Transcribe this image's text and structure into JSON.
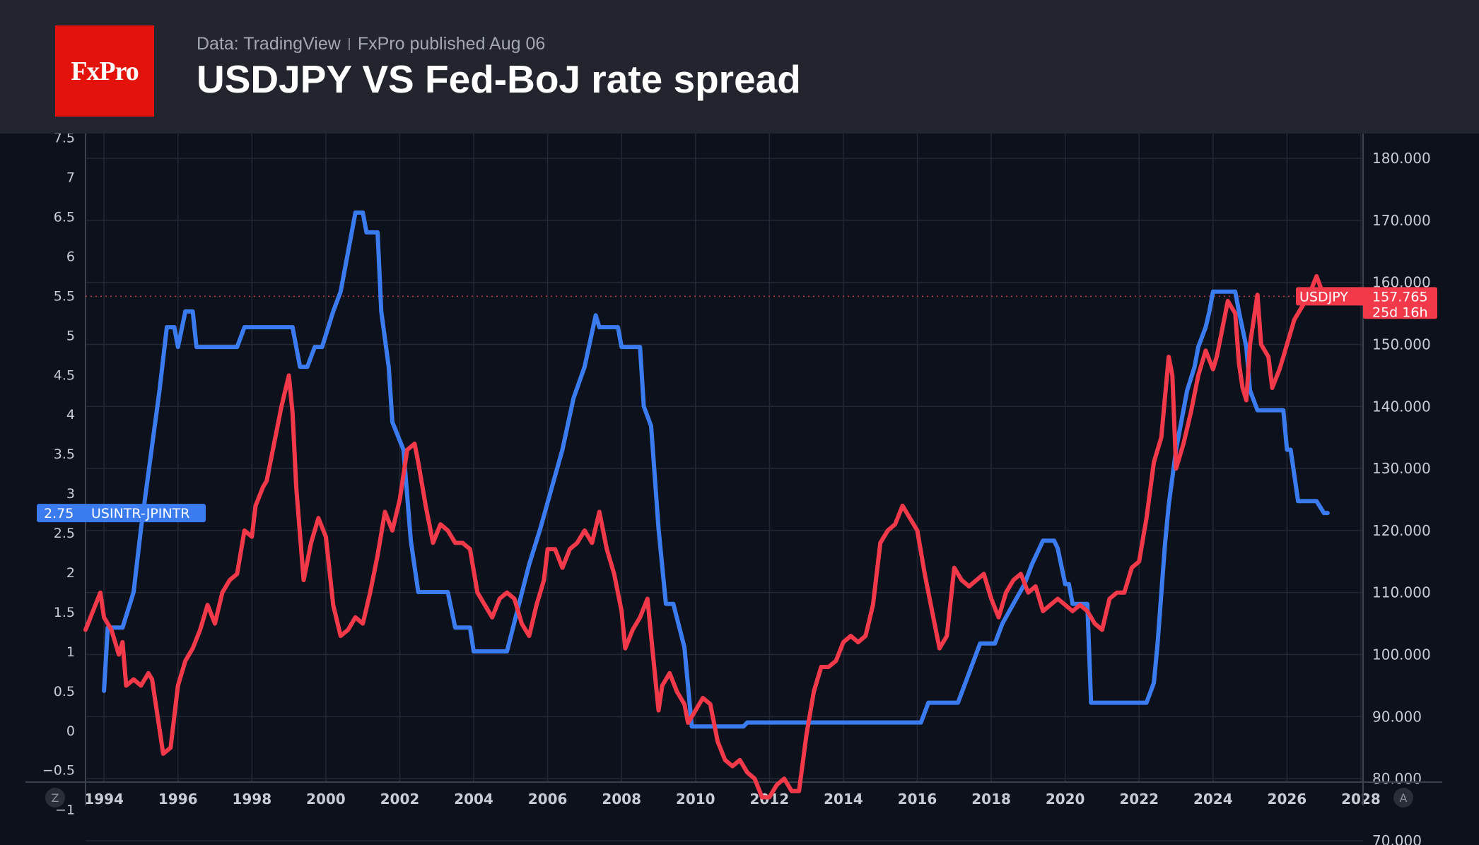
{
  "header": {
    "logo_text": "FxPro",
    "source_text": "Data: TradingView",
    "published_text": "FxPro published Aug 06",
    "title": "USDJPY VS Fed-BoJ rate spread"
  },
  "colors": {
    "background": "#0d111c",
    "header_bg": "#22242e",
    "logo_bg": "#e3120b",
    "spread_line": "#3a7bef",
    "usdjpy_line": "#f2394a",
    "grid": "#232734",
    "axis_text": "#c9ccd4"
  },
  "scale_buttons": {
    "left": "Z",
    "right": "A"
  },
  "chart_data": {
    "type": "line",
    "xlim": [
      1993.5,
      2030.2
    ],
    "x_ticks": [
      "1994",
      "1996",
      "1998",
      "2000",
      "2002",
      "2004",
      "2006",
      "2008",
      "2010",
      "2012",
      "2014",
      "2016",
      "2018",
      "2020",
      "2022",
      "2024",
      "2026",
      "2028"
    ],
    "left_axis": {
      "ylim": [
        -1.45,
        7.55
      ],
      "ticks": [
        "7.5",
        "7",
        "6.5",
        "6",
        "5.5",
        "5",
        "4.5",
        "4",
        "3.5",
        "3",
        "2.5",
        "2",
        "1.5",
        "1",
        "0.5",
        "0",
        "−0.5",
        "−1"
      ]
    },
    "right_axis": {
      "ylim": [
        69.3,
        184
      ],
      "ticks": [
        "180.000",
        "170.000",
        "160.000",
        "150.000",
        "140.000",
        "130.000",
        "120.000",
        "110.000",
        "100.000",
        "90.000",
        "80.000",
        "70.000"
      ]
    },
    "series": [
      {
        "name": "USINTR-JPINTR",
        "axis": "left",
        "color": "#3a7bef",
        "last_value_label": "2.75",
        "points": [
          [
            1994.0,
            0.5
          ],
          [
            1994.1,
            1.3
          ],
          [
            1994.5,
            1.3
          ],
          [
            1994.8,
            1.75
          ],
          [
            1995.0,
            2.55
          ],
          [
            1995.3,
            3.6
          ],
          [
            1995.5,
            4.3
          ],
          [
            1995.7,
            5.1
          ],
          [
            1995.9,
            5.1
          ],
          [
            1996.0,
            4.85
          ],
          [
            1996.2,
            5.3
          ],
          [
            1996.4,
            5.3
          ],
          [
            1996.5,
            4.85
          ],
          [
            1997.6,
            4.85
          ],
          [
            1997.8,
            5.1
          ],
          [
            1999.1,
            5.1
          ],
          [
            1999.3,
            4.6
          ],
          [
            1999.5,
            4.6
          ],
          [
            1999.7,
            4.85
          ],
          [
            1999.9,
            4.85
          ],
          [
            2000.2,
            5.3
          ],
          [
            2000.4,
            5.55
          ],
          [
            2000.6,
            6.05
          ],
          [
            2000.8,
            6.55
          ],
          [
            2001.0,
            6.55
          ],
          [
            2001.1,
            6.3
          ],
          [
            2001.4,
            6.3
          ],
          [
            2001.5,
            5.3
          ],
          [
            2001.7,
            4.6
          ],
          [
            2001.8,
            3.9
          ],
          [
            2002.1,
            3.55
          ],
          [
            2002.3,
            2.4
          ],
          [
            2002.5,
            1.75
          ],
          [
            2002.7,
            1.75
          ],
          [
            2003.3,
            1.75
          ],
          [
            2003.5,
            1.3
          ],
          [
            2003.9,
            1.3
          ],
          [
            2004.0,
            1.0
          ],
          [
            2004.9,
            1.0
          ],
          [
            2005.2,
            1.55
          ],
          [
            2005.5,
            2.1
          ],
          [
            2005.8,
            2.55
          ],
          [
            2006.1,
            3.05
          ],
          [
            2006.4,
            3.55
          ],
          [
            2006.7,
            4.2
          ],
          [
            2007.0,
            4.6
          ],
          [
            2007.3,
            5.25
          ],
          [
            2007.4,
            5.1
          ],
          [
            2007.9,
            5.1
          ],
          [
            2008.0,
            4.85
          ],
          [
            2008.5,
            4.85
          ],
          [
            2008.6,
            4.1
          ],
          [
            2008.8,
            3.85
          ],
          [
            2009.0,
            2.55
          ],
          [
            2009.2,
            1.6
          ],
          [
            2009.4,
            1.6
          ],
          [
            2009.7,
            1.05
          ],
          [
            2009.9,
            0.05
          ],
          [
            2011.0,
            0.05
          ],
          [
            2011.3,
            0.05
          ],
          [
            2011.4,
            0.1
          ],
          [
            2015.8,
            0.1
          ],
          [
            2016.1,
            0.1
          ],
          [
            2016.3,
            0.35
          ],
          [
            2017.1,
            0.35
          ],
          [
            2017.3,
            0.6
          ],
          [
            2017.5,
            0.85
          ],
          [
            2017.7,
            1.1
          ],
          [
            2018.1,
            1.1
          ],
          [
            2018.3,
            1.35
          ],
          [
            2018.6,
            1.6
          ],
          [
            2018.9,
            1.85
          ],
          [
            2019.1,
            2.1
          ],
          [
            2019.4,
            2.4
          ],
          [
            2019.7,
            2.4
          ],
          [
            2019.8,
            2.3
          ],
          [
            2020.0,
            1.85
          ],
          [
            2020.1,
            1.85
          ],
          [
            2020.2,
            1.6
          ],
          [
            2020.6,
            1.6
          ],
          [
            2020.7,
            0.35
          ],
          [
            2022.1,
            0.35
          ],
          [
            2022.2,
            0.35
          ],
          [
            2022.4,
            0.6
          ],
          [
            2022.5,
            1.1
          ],
          [
            2022.7,
            2.35
          ],
          [
            2022.8,
            2.85
          ],
          [
            2023.0,
            3.55
          ],
          [
            2023.3,
            4.3
          ],
          [
            2023.5,
            4.6
          ],
          [
            2023.6,
            4.85
          ],
          [
            2023.8,
            5.1
          ],
          [
            2023.9,
            5.3
          ],
          [
            2024.0,
            5.55
          ],
          [
            2024.6,
            5.55
          ],
          [
            2024.7,
            5.3
          ],
          [
            2024.9,
            4.85
          ],
          [
            2025.0,
            4.3
          ],
          [
            2025.2,
            4.05
          ],
          [
            2025.3,
            4.05
          ],
          [
            2025.9,
            4.05
          ],
          [
            2026.0,
            3.55
          ],
          [
            2026.1,
            3.55
          ],
          [
            2026.3,
            2.9
          ],
          [
            2026.8,
            2.9
          ],
          [
            2027.0,
            2.75
          ],
          [
            2027.1,
            2.75
          ]
        ]
      },
      {
        "name": "USDJPY",
        "axis": "right",
        "color": "#f2394a",
        "last_value_label": "157.765",
        "countdown_label": "25d 16h",
        "points": [
          [
            1993.5,
            104
          ],
          [
            1993.7,
            107
          ],
          [
            1993.9,
            110
          ],
          [
            1994.0,
            106
          ],
          [
            1994.2,
            104
          ],
          [
            1994.4,
            100
          ],
          [
            1994.5,
            102
          ],
          [
            1994.6,
            95
          ],
          [
            1994.8,
            96
          ],
          [
            1995.0,
            95
          ],
          [
            1995.2,
            97
          ],
          [
            1995.3,
            96
          ],
          [
            1995.5,
            88
          ],
          [
            1995.6,
            84
          ],
          [
            1995.8,
            85
          ],
          [
            1996.0,
            95
          ],
          [
            1996.2,
            99
          ],
          [
            1996.4,
            101
          ],
          [
            1996.6,
            104
          ],
          [
            1996.8,
            108
          ],
          [
            1997.0,
            105
          ],
          [
            1997.2,
            110
          ],
          [
            1997.4,
            112
          ],
          [
            1997.6,
            113
          ],
          [
            1997.8,
            120
          ],
          [
            1998.0,
            119
          ],
          [
            1998.1,
            124
          ],
          [
            1998.3,
            127
          ],
          [
            1998.4,
            128
          ],
          [
            1998.6,
            134
          ],
          [
            1998.8,
            140
          ],
          [
            1999.0,
            145
          ],
          [
            1999.1,
            139
          ],
          [
            1999.2,
            127
          ],
          [
            1999.4,
            112
          ],
          [
            1999.6,
            118
          ],
          [
            1999.8,
            122
          ],
          [
            2000.0,
            119
          ],
          [
            2000.2,
            108
          ],
          [
            2000.4,
            103
          ],
          [
            2000.6,
            104
          ],
          [
            2000.8,
            106
          ],
          [
            2001.0,
            105
          ],
          [
            2001.2,
            110
          ],
          [
            2001.4,
            116
          ],
          [
            2001.6,
            123
          ],
          [
            2001.8,
            120
          ],
          [
            2002.0,
            125
          ],
          [
            2002.2,
            133
          ],
          [
            2002.4,
            134
          ],
          [
            2002.5,
            131
          ],
          [
            2002.7,
            124
          ],
          [
            2002.9,
            118
          ],
          [
            2003.1,
            121
          ],
          [
            2003.3,
            120
          ],
          [
            2003.5,
            118
          ],
          [
            2003.7,
            118
          ],
          [
            2003.9,
            117
          ],
          [
            2004.1,
            110
          ],
          [
            2004.3,
            108
          ],
          [
            2004.5,
            106
          ],
          [
            2004.7,
            109
          ],
          [
            2004.9,
            110
          ],
          [
            2005.1,
            109
          ],
          [
            2005.3,
            105
          ],
          [
            2005.5,
            103
          ],
          [
            2005.7,
            108
          ],
          [
            2005.9,
            112
          ],
          [
            2006.0,
            117
          ],
          [
            2006.2,
            117
          ],
          [
            2006.4,
            114
          ],
          [
            2006.6,
            117
          ],
          [
            2006.8,
            118
          ],
          [
            2007.0,
            120
          ],
          [
            2007.2,
            118
          ],
          [
            2007.4,
            123
          ],
          [
            2007.6,
            117
          ],
          [
            2007.8,
            113
          ],
          [
            2008.0,
            107
          ],
          [
            2008.1,
            101
          ],
          [
            2008.3,
            104
          ],
          [
            2008.5,
            106
          ],
          [
            2008.7,
            109
          ],
          [
            2008.9,
            97
          ],
          [
            2009.0,
            91
          ],
          [
            2009.1,
            95
          ],
          [
            2009.3,
            97
          ],
          [
            2009.5,
            94
          ],
          [
            2009.7,
            92
          ],
          [
            2009.8,
            89
          ],
          [
            2010.0,
            91
          ],
          [
            2010.2,
            93
          ],
          [
            2010.4,
            92
          ],
          [
            2010.6,
            86
          ],
          [
            2010.8,
            83
          ],
          [
            2011.0,
            82
          ],
          [
            2011.2,
            83
          ],
          [
            2011.4,
            81
          ],
          [
            2011.6,
            80
          ],
          [
            2011.8,
            77
          ],
          [
            2012.0,
            77
          ],
          [
            2012.2,
            79
          ],
          [
            2012.4,
            80
          ],
          [
            2012.6,
            78
          ],
          [
            2012.8,
            78
          ],
          [
            2013.0,
            87
          ],
          [
            2013.2,
            94
          ],
          [
            2013.4,
            98
          ],
          [
            2013.6,
            98
          ],
          [
            2013.8,
            99
          ],
          [
            2014.0,
            102
          ],
          [
            2014.2,
            103
          ],
          [
            2014.4,
            102
          ],
          [
            2014.6,
            103
          ],
          [
            2014.8,
            108
          ],
          [
            2015.0,
            118
          ],
          [
            2015.2,
            120
          ],
          [
            2015.4,
            121
          ],
          [
            2015.6,
            124
          ],
          [
            2015.8,
            122
          ],
          [
            2016.0,
            120
          ],
          [
            2016.2,
            113
          ],
          [
            2016.4,
            107
          ],
          [
            2016.6,
            101
          ],
          [
            2016.8,
            103
          ],
          [
            2017.0,
            114
          ],
          [
            2017.2,
            112
          ],
          [
            2017.4,
            111
          ],
          [
            2017.6,
            112
          ],
          [
            2017.8,
            113
          ],
          [
            2018.0,
            109
          ],
          [
            2018.2,
            106
          ],
          [
            2018.4,
            110
          ],
          [
            2018.6,
            112
          ],
          [
            2018.8,
            113
          ],
          [
            2019.0,
            110
          ],
          [
            2019.2,
            111
          ],
          [
            2019.4,
            107
          ],
          [
            2019.6,
            108
          ],
          [
            2019.8,
            109
          ],
          [
            2020.0,
            108
          ],
          [
            2020.2,
            107
          ],
          [
            2020.4,
            108
          ],
          [
            2020.6,
            107
          ],
          [
            2020.8,
            105
          ],
          [
            2021.0,
            104
          ],
          [
            2021.2,
            109
          ],
          [
            2021.4,
            110
          ],
          [
            2021.6,
            110
          ],
          [
            2021.8,
            114
          ],
          [
            2022.0,
            115
          ],
          [
            2022.2,
            122
          ],
          [
            2022.4,
            131
          ],
          [
            2022.6,
            135
          ],
          [
            2022.8,
            148
          ],
          [
            2022.9,
            145
          ],
          [
            2023.0,
            130
          ],
          [
            2023.2,
            134
          ],
          [
            2023.4,
            139
          ],
          [
            2023.6,
            145
          ],
          [
            2023.8,
            149
          ],
          [
            2024.0,
            146
          ],
          [
            2024.1,
            148
          ],
          [
            2024.2,
            151
          ],
          [
            2024.4,
            157
          ],
          [
            2024.6,
            155
          ],
          [
            2024.7,
            147
          ],
          [
            2024.8,
            143
          ],
          [
            2024.9,
            141
          ],
          [
            2025.0,
            150
          ],
          [
            2025.2,
            158
          ],
          [
            2025.3,
            150
          ],
          [
            2025.5,
            148
          ],
          [
            2025.6,
            143
          ],
          [
            2025.8,
            146
          ],
          [
            2025.9,
            148
          ],
          [
            2026.0,
            150
          ],
          [
            2026.2,
            154
          ],
          [
            2026.4,
            156
          ],
          [
            2026.6,
            158
          ],
          [
            2026.8,
            161
          ],
          [
            2027.0,
            157.765
          ]
        ]
      }
    ],
    "reference_line": {
      "axis": "right",
      "value": 157.765
    },
    "legend": "axis-price-labels"
  }
}
